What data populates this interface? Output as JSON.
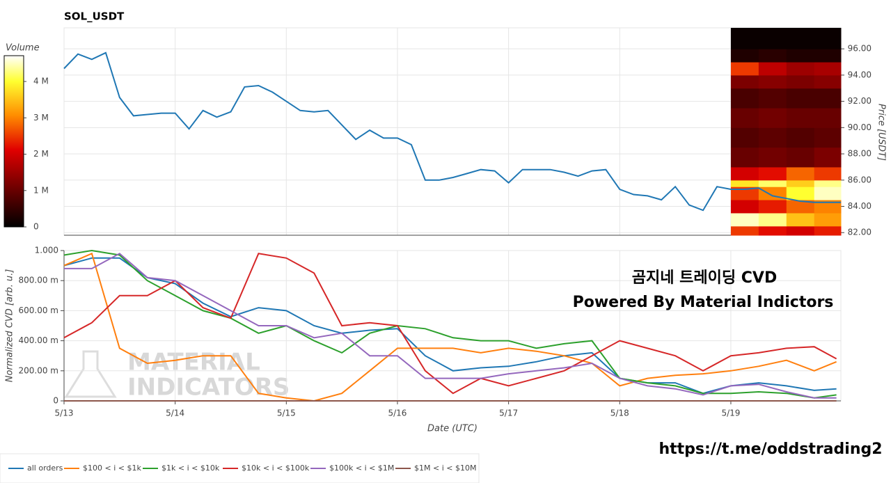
{
  "chart_data": [
    {
      "type": "line",
      "title": "SOL_USDT",
      "y_label": "Price [USDT]",
      "color": "#1f77b4",
      "grid": true,
      "xlim": [
        0,
        6.99
      ],
      "xticks": [
        1,
        2,
        3,
        4,
        5,
        6
      ],
      "ylim": [
        81.8,
        97.6
      ],
      "yticks": [
        {
          "value": 82,
          "label": "82.00"
        },
        {
          "value": 84,
          "label": "84.00"
        },
        {
          "value": 86,
          "label": "86.00"
        },
        {
          "value": 88,
          "label": "88.00"
        },
        {
          "value": 90,
          "label": "90.00"
        },
        {
          "value": 92,
          "label": "92.00"
        },
        {
          "value": 94,
          "label": "94.00"
        },
        {
          "value": 96,
          "label": "96.00"
        }
      ],
      "x": [
        0,
        0.125,
        0.25,
        0.375,
        0.5,
        0.625,
        0.75,
        0.875,
        1,
        1.125,
        1.25,
        1.375,
        1.5,
        1.625,
        1.75,
        1.875,
        2,
        2.125,
        2.25,
        2.375,
        2.5,
        2.625,
        2.75,
        2.875,
        3,
        3.125,
        3.25,
        3.375,
        3.5,
        3.625,
        3.75,
        3.875,
        4,
        4.125,
        4.25,
        4.375,
        4.5,
        4.625,
        4.75,
        4.875,
        5,
        5.125,
        5.25,
        5.375,
        5.5,
        5.625,
        5.75,
        5.875,
        6,
        6.125,
        6.25,
        6.375,
        6.5,
        6.625,
        6.75,
        6.875,
        6.99
      ],
      "values": [
        94.5,
        95.6,
        95.2,
        95.7,
        92.3,
        90.9,
        91.0,
        91.1,
        91.1,
        89.9,
        91.3,
        90.8,
        91.2,
        93.1,
        93.2,
        92.7,
        92.0,
        91.3,
        91.2,
        91.3,
        90.2,
        89.1,
        89.8,
        89.2,
        89.2,
        88.7,
        86.0,
        86.0,
        86.2,
        86.5,
        86.8,
        86.7,
        85.8,
        86.8,
        86.8,
        86.8,
        86.6,
        86.3,
        86.7,
        86.8,
        85.3,
        84.9,
        84.8,
        84.5,
        85.5,
        84.1,
        83.7,
        85.5,
        85.3,
        85.3,
        85.4,
        84.8,
        84.6,
        84.4,
        84.3,
        84.3,
        84.3
      ],
      "heatmap": {
        "color_label": "Volume",
        "clim": [
          0,
          4.71
        ],
        "cticks": [
          0,
          {
            "value": 1,
            "label": "1 M"
          },
          {
            "value": 2,
            "label": "2 M"
          },
          {
            "value": 3,
            "label": "3 M"
          },
          {
            "value": 4,
            "label": "4 M"
          }
        ],
        "x_edges": [
          6,
          6.25,
          6.5,
          6.75,
          6.99
        ],
        "y_edges": [
          81.8,
          82.5,
          83.5,
          84.5,
          85.5,
          86.0,
          87.0,
          88.5,
          90,
          91.5,
          93,
          94,
          95,
          96,
          97.6
        ],
        "values": [
          [
            2.5,
            2.2,
            2.0,
            2.3
          ],
          [
            4.5,
            4.3,
            3.5,
            3.2
          ],
          [
            2.0,
            2.3,
            2.8,
            3.0
          ],
          [
            2.5,
            3.0,
            4.0,
            4.5
          ],
          [
            3.8,
            4.2,
            3.6,
            4.3
          ],
          [
            2.0,
            2.2,
            2.8,
            2.5
          ],
          [
            1.0,
            1.1,
            1.0,
            1.2
          ],
          [
            0.8,
            0.9,
            0.8,
            0.9
          ],
          [
            1.0,
            1.1,
            1.0,
            1.0
          ],
          [
            0.7,
            0.8,
            0.7,
            0.7
          ],
          [
            1.2,
            1.3,
            1.2,
            1.3
          ],
          [
            2.5,
            1.8,
            1.5,
            1.6
          ],
          [
            0.3,
            0.4,
            0.3,
            0.3
          ],
          [
            0.1,
            0.1,
            0.1,
            0.1
          ]
        ]
      }
    },
    {
      "type": "line",
      "y_label": "Normalized CVD [arb. u.]",
      "x_label": "Date (UTC)",
      "grid": true,
      "xlim": [
        0,
        6.99
      ],
      "xticks": [
        {
          "value": 0,
          "label": "5/13"
        },
        {
          "value": 1,
          "label": "5/14"
        },
        {
          "value": 2,
          "label": "5/15"
        },
        {
          "value": 3,
          "label": "5/16"
        },
        {
          "value": 4,
          "label": "5/17"
        },
        {
          "value": 5,
          "label": "5/18"
        },
        {
          "value": 6,
          "label": "5/19"
        }
      ],
      "ylim": [
        0,
        1.0
      ],
      "yticks": [
        0,
        {
          "value": 0.2,
          "label": "200.00 m"
        },
        {
          "value": 0.4,
          "label": "400.00 m"
        },
        {
          "value": 0.6,
          "label": "600.00 m"
        },
        {
          "value": 0.8,
          "label": "800.00 m"
        },
        {
          "value": 1.0,
          "label": "1.000"
        }
      ],
      "x": [
        0,
        0.25,
        0.5,
        0.75,
        1,
        1.25,
        1.5,
        1.75,
        2,
        2.25,
        2.5,
        2.75,
        3,
        3.25,
        3.5,
        3.75,
        4,
        4.25,
        4.5,
        4.75,
        5,
        5.25,
        5.5,
        5.75,
        6,
        6.25,
        6.5,
        6.75,
        6.95
      ],
      "series": [
        {
          "name": "all orders",
          "color": "#1f77b4",
          "values": [
            0.9,
            0.95,
            0.95,
            0.82,
            0.78,
            0.65,
            0.56,
            0.62,
            0.6,
            0.5,
            0.45,
            0.47,
            0.48,
            0.3,
            0.2,
            0.22,
            0.23,
            0.26,
            0.3,
            0.32,
            0.15,
            0.12,
            0.12,
            0.05,
            0.1,
            0.12,
            0.1,
            0.07,
            0.08
          ]
        },
        {
          "name": "$100 < i < $1k",
          "color": "#ff7f0e",
          "values": [
            0.9,
            0.98,
            0.35,
            0.25,
            0.27,
            0.3,
            0.3,
            0.05,
            0.02,
            0,
            0.05,
            0.2,
            0.35,
            0.35,
            0.35,
            0.32,
            0.35,
            0.33,
            0.3,
            0.25,
            0.1,
            0.15,
            0.17,
            0.18,
            0.2,
            0.23,
            0.27,
            0.2,
            0.26
          ]
        },
        {
          "name": "$1k < i < $10k",
          "color": "#2ca02c",
          "values": [
            0.97,
            1.0,
            0.97,
            0.8,
            0.7,
            0.6,
            0.55,
            0.45,
            0.5,
            0.4,
            0.32,
            0.45,
            0.5,
            0.48,
            0.42,
            0.4,
            0.4,
            0.35,
            0.38,
            0.4,
            0.15,
            0.12,
            0.1,
            0.05,
            0.05,
            0.06,
            0.05,
            0.02,
            0.04
          ]
        },
        {
          "name": "$10k < i < $100k",
          "color": "#d62728",
          "values": [
            0.42,
            0.52,
            0.7,
            0.7,
            0.8,
            0.62,
            0.55,
            0.98,
            0.95,
            0.85,
            0.5,
            0.52,
            0.5,
            0.2,
            0.05,
            0.15,
            0.1,
            0.15,
            0.2,
            0.3,
            0.4,
            0.35,
            0.3,
            0.2,
            0.3,
            0.32,
            0.35,
            0.36,
            0.28
          ]
        },
        {
          "name": "$100k < i < $1M",
          "color": "#9467bd",
          "values": [
            0.88,
            0.88,
            0.98,
            0.82,
            0.8,
            0.7,
            0.6,
            0.5,
            0.5,
            0.42,
            0.45,
            0.3,
            0.3,
            0.15,
            0.15,
            0.15,
            0.18,
            0.2,
            0.22,
            0.25,
            0.15,
            0.1,
            0.08,
            0.04,
            0.1,
            0.11,
            0.06,
            0.02,
            0.02
          ]
        },
        {
          "name": "$1M < i < $10M",
          "color": "#8c564b",
          "values": [
            0,
            0,
            0,
            0,
            0,
            0,
            0,
            0,
            0,
            0,
            0,
            0,
            0,
            0,
            0,
            0,
            0,
            0,
            0,
            0,
            0,
            0,
            0,
            0,
            0,
            0,
            0,
            0,
            0
          ]
        }
      ],
      "annotations": {
        "overlay_title": "곰지네 트레이딩 CVD",
        "overlay_subtitle": "Powered By Material Indictors",
        "watermark": [
          "MATERIAL",
          "INDICATORS"
        ],
        "url": "https://t.me/oddstrading2"
      }
    }
  ]
}
